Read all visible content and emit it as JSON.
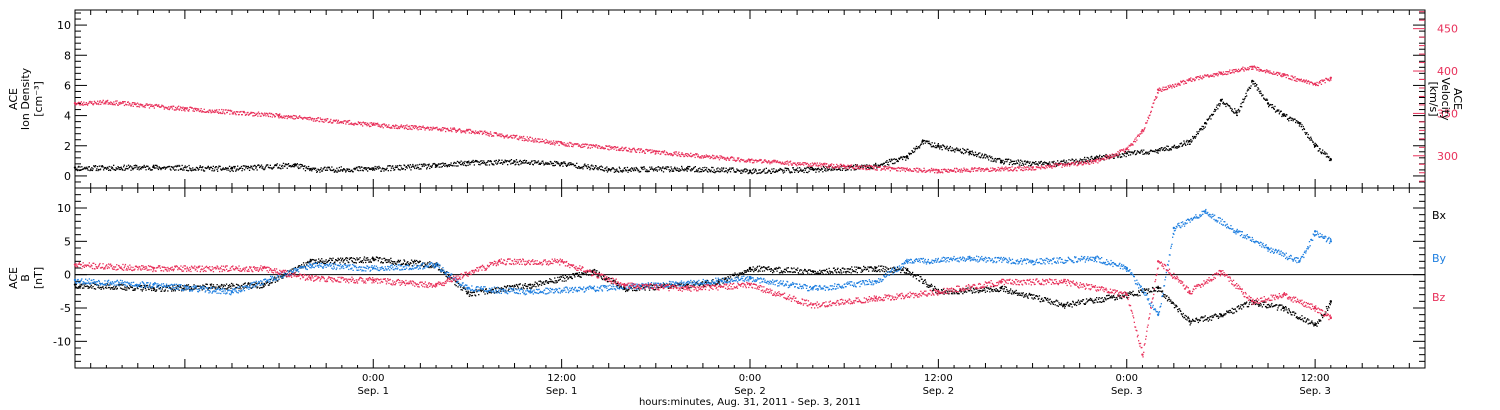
{
  "chart_data": {
    "x_axis": {
      "unit_label": "hours:minutes, Aug. 31, 2011 - Sep.  3, 2011",
      "start": "2011-08-31T05:00",
      "end": "2011-09-03T19:00",
      "ticks": [
        {
          "time": "2011-09-01T00:00",
          "hm": "0:00",
          "date": "Sep. 1"
        },
        {
          "time": "2011-09-01T12:00",
          "hm": "12:00",
          "date": "Sep. 1"
        },
        {
          "time": "2011-09-02T00:00",
          "hm": "0:00",
          "date": "Sep. 2"
        },
        {
          "time": "2011-09-02T12:00",
          "hm": "12:00",
          "date": "Sep. 2"
        },
        {
          "time": "2011-09-03T00:00",
          "hm": "0:00",
          "date": "Sep. 3"
        },
        {
          "time": "2011-09-03T12:00",
          "hm": "12:00",
          "date": "Sep. 3"
        }
      ]
    },
    "panels": [
      {
        "id": "density-velocity",
        "type": "scatter",
        "grid": false,
        "left_axis": {
          "label_lines": [
            "ACE",
            "Ion Density",
            "[cm⁻³]"
          ],
          "ylim": [
            -0.8,
            11
          ],
          "ticks": [
            0,
            2,
            4,
            6,
            8,
            10
          ]
        },
        "right_axis": {
          "label_lines": [
            "ACE",
            "Velocity",
            "[km/s]"
          ],
          "ylim": [
            262,
            472
          ],
          "ticks": [
            300,
            350,
            400,
            450
          ],
          "color": "#e8305a"
        },
        "series": [
          {
            "key": "density",
            "axis": "left",
            "color": "#000000",
            "points": [
              [
                "2011-08-31T05:00",
                0.55
              ],
              [
                "2011-08-31T10:00",
                0.6
              ],
              [
                "2011-08-31T15:00",
                0.5
              ],
              [
                "2011-08-31T19:00",
                0.75
              ],
              [
                "2011-08-31T20:00",
                0.45
              ],
              [
                "2011-09-01T00:00",
                0.5
              ],
              [
                "2011-09-01T04:00",
                0.7
              ],
              [
                "2011-09-01T06:00",
                0.9
              ],
              [
                "2011-09-01T09:00",
                0.95
              ],
              [
                "2011-09-01T12:00",
                0.85
              ],
              [
                "2011-09-01T15:00",
                0.45
              ],
              [
                "2011-09-01T20:00",
                0.5
              ],
              [
                "2011-09-02T00:00",
                0.35
              ],
              [
                "2011-09-02T04:00",
                0.45
              ],
              [
                "2011-09-02T08:00",
                0.7
              ],
              [
                "2011-09-02T10:00",
                1.3
              ],
              [
                "2011-09-02T11:00",
                2.3
              ],
              [
                "2011-09-02T12:00",
                2.0
              ],
              [
                "2011-09-02T14:00",
                1.6
              ],
              [
                "2011-09-02T16:00",
                1.0
              ],
              [
                "2011-09-02T19:00",
                0.8
              ],
              [
                "2011-09-02T22:00",
                1.2
              ],
              [
                "2011-09-03T00:00",
                1.5
              ],
              [
                "2011-09-03T02:00",
                1.7
              ],
              [
                "2011-09-03T04:00",
                2.3
              ],
              [
                "2011-09-03T05:00",
                3.5
              ],
              [
                "2011-09-03T06:00",
                5.0
              ],
              [
                "2011-09-03T07:00",
                4.2
              ],
              [
                "2011-09-03T08:00",
                6.3
              ],
              [
                "2011-09-03T09:00",
                4.8
              ],
              [
                "2011-09-03T10:00",
                4.0
              ],
              [
                "2011-09-03T11:00",
                3.5
              ],
              [
                "2011-09-03T12:00",
                2.0
              ],
              [
                "2011-09-03T13:00",
                1.1
              ]
            ]
          },
          {
            "key": "velocity",
            "axis": "right",
            "color": "#e8305a",
            "points": [
              [
                "2011-08-31T05:00",
                362
              ],
              [
                "2011-08-31T07:00",
                364
              ],
              [
                "2011-08-31T12:00",
                356
              ],
              [
                "2011-08-31T18:00",
                348
              ],
              [
                "2011-09-01T00:00",
                337
              ],
              [
                "2011-09-01T06:00",
                330
              ],
              [
                "2011-09-01T12:00",
                315
              ],
              [
                "2011-09-01T18:00",
                305
              ],
              [
                "2011-09-02T00:00",
                295
              ],
              [
                "2011-09-02T06:00",
                288
              ],
              [
                "2011-09-02T12:00",
                283
              ],
              [
                "2011-09-02T18:00",
                286
              ],
              [
                "2011-09-02T22:00",
                294
              ],
              [
                "2011-09-03T00:00",
                308
              ],
              [
                "2011-09-03T01:00",
                330
              ],
              [
                "2011-09-03T02:00",
                378
              ],
              [
                "2011-09-03T04:00",
                390
              ],
              [
                "2011-09-03T06:00",
                398
              ],
              [
                "2011-09-03T08:00",
                405
              ],
              [
                "2011-09-03T10:00",
                395
              ],
              [
                "2011-09-03T12:00",
                385
              ],
              [
                "2011-09-03T13:00",
                392
              ]
            ]
          }
        ]
      },
      {
        "id": "magnetic-field",
        "type": "scatter",
        "grid": false,
        "left_axis": {
          "label_lines": [
            "ACE",
            "B",
            "[nT]"
          ],
          "ylim": [
            -14,
            13
          ],
          "ticks": [
            -10,
            -5,
            0,
            5,
            10
          ]
        },
        "zero_line": true,
        "legend": {
          "placement": "right"
        },
        "series": [
          {
            "name": "Bx",
            "color": "#000000",
            "points": [
              [
                "2011-08-31T05:00",
                -1.5
              ],
              [
                "2011-08-31T10:00",
                -2.0
              ],
              [
                "2011-08-31T17:00",
                -1.5
              ],
              [
                "2011-08-31T20:00",
                2.0
              ],
              [
                "2011-09-01T00:00",
                2.4
              ],
              [
                "2011-09-01T04:00",
                1.5
              ],
              [
                "2011-09-01T06:00",
                -2.8
              ],
              [
                "2011-09-01T10:00",
                -1.5
              ],
              [
                "2011-09-01T14:00",
                0.5
              ],
              [
                "2011-09-01T16:00",
                -2.0
              ],
              [
                "2011-09-01T20:00",
                -1.5
              ],
              [
                "2011-09-01T22:00",
                -1.0
              ],
              [
                "2011-09-02T00:00",
                1.0
              ],
              [
                "2011-09-02T04:00",
                0.5
              ],
              [
                "2011-09-02T08:00",
                1.0
              ],
              [
                "2011-09-02T10:00",
                0.7
              ],
              [
                "2011-09-02T12:00",
                -2.5
              ],
              [
                "2011-09-02T16:00",
                -2.0
              ],
              [
                "2011-09-02T20:00",
                -4.5
              ],
              [
                "2011-09-03T00:00",
                -3.0
              ],
              [
                "2011-09-03T02:00",
                -2.0
              ],
              [
                "2011-09-03T04:00",
                -7.0
              ],
              [
                "2011-09-03T06:00",
                -6.0
              ],
              [
                "2011-09-03T08:00",
                -4.0
              ],
              [
                "2011-09-03T10:00",
                -5.0
              ],
              [
                "2011-09-03T12:00",
                -7.5
              ],
              [
                "2011-09-03T13:00",
                -4.0
              ]
            ]
          },
          {
            "name": "By",
            "color": "#1f7fe0",
            "points": [
              [
                "2011-08-31T05:00",
                -0.8
              ],
              [
                "2011-08-31T10:00",
                -1.5
              ],
              [
                "2011-08-31T15:00",
                -2.5
              ],
              [
                "2011-08-31T20:00",
                1.5
              ],
              [
                "2011-09-01T00:00",
                1.0
              ],
              [
                "2011-09-01T04:00",
                1.5
              ],
              [
                "2011-09-01T06:00",
                -2.0
              ],
              [
                "2011-09-01T10:00",
                -2.5
              ],
              [
                "2011-09-01T14:00",
                -2.0
              ],
              [
                "2011-09-01T18:00",
                -1.5
              ],
              [
                "2011-09-02T00:00",
                -0.5
              ],
              [
                "2011-09-02T04:00",
                -2.0
              ],
              [
                "2011-09-02T08:00",
                -1.0
              ],
              [
                "2011-09-02T10:00",
                2.0
              ],
              [
                "2011-09-02T14:00",
                2.5
              ],
              [
                "2011-09-02T18:00",
                2.0
              ],
              [
                "2011-09-02T22:00",
                2.5
              ],
              [
                "2011-09-03T00:00",
                1.0
              ],
              [
                "2011-09-03T02:00",
                -6.0
              ],
              [
                "2011-09-03T03:00",
                7.0
              ],
              [
                "2011-09-03T05:00",
                9.5
              ],
              [
                "2011-09-03T07:00",
                6.5
              ],
              [
                "2011-09-03T09:00",
                4.0
              ],
              [
                "2011-09-03T11:00",
                2.0
              ],
              [
                "2011-09-03T12:00",
                6.5
              ],
              [
                "2011-09-03T13:00",
                5.0
              ]
            ]
          },
          {
            "name": "Bz",
            "color": "#e8305a",
            "points": [
              [
                "2011-08-31T05:00",
                1.5
              ],
              [
                "2011-08-31T10:00",
                1.0
              ],
              [
                "2011-08-31T17:00",
                1.0
              ],
              [
                "2011-08-31T20:00",
                -0.5
              ],
              [
                "2011-09-01T00:00",
                -0.8
              ],
              [
                "2011-09-01T04:00",
                -1.5
              ],
              [
                "2011-09-01T08:00",
                2.0
              ],
              [
                "2011-09-01T12:00",
                2.0
              ],
              [
                "2011-09-01T16:00",
                -1.5
              ],
              [
                "2011-09-01T20:00",
                -2.0
              ],
              [
                "2011-09-02T00:00",
                -1.5
              ],
              [
                "2011-09-02T04:00",
                -4.5
              ],
              [
                "2011-09-02T08:00",
                -3.5
              ],
              [
                "2011-09-02T12:00",
                -2.5
              ],
              [
                "2011-09-02T16:00",
                -1.0
              ],
              [
                "2011-09-02T20:00",
                -1.0
              ],
              [
                "2011-09-03T00:00",
                -3.0
              ],
              [
                "2011-09-03T01:00",
                -12.0
              ],
              [
                "2011-09-03T02:00",
                2.0
              ],
              [
                "2011-09-03T04:00",
                -2.5
              ],
              [
                "2011-09-03T06:00",
                0.5
              ],
              [
                "2011-09-03T08:00",
                -4.0
              ],
              [
                "2011-09-03T10:00",
                -3.0
              ],
              [
                "2011-09-03T12:00",
                -5.0
              ],
              [
                "2011-09-03T13:00",
                -6.5
              ]
            ]
          }
        ]
      }
    ]
  }
}
